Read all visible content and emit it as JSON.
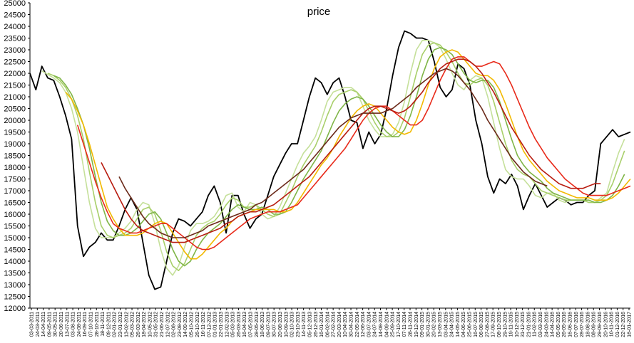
{
  "chart_data": {
    "type": "line",
    "title": "price",
    "xlabel": "",
    "ylabel": "",
    "ylim": [
      12000,
      25000
    ],
    "y_ticks": [
      12000,
      12500,
      13000,
      13500,
      14000,
      14500,
      15000,
      15500,
      16000,
      16500,
      17000,
      17500,
      18000,
      18500,
      19000,
      19500,
      20000,
      20500,
      21000,
      21500,
      22000,
      22500,
      23000,
      23500,
      24000,
      24500,
      25000
    ],
    "x_tick_labels": [
      "03-03-2011",
      "24-03-2011",
      "14-04-2011",
      "09-05-2011",
      "30-05-2011",
      "20-06-2011",
      "13-07-2011",
      "03-08-2011",
      "24-08-2011",
      "16-09-2011",
      "07-10-2011",
      "28-10-2011",
      "18-11-2011",
      "09-12-2011",
      "02-01-2012",
      "23-01-2012",
      "13-02-2012",
      "05-03-2012",
      "26-03-2012",
      "18-04-2012",
      "10-05-2012",
      "31-05-2012",
      "21-06-2012",
      "12-07-2012",
      "02-08-2012",
      "23-08-2012",
      "14-09-2012",
      "05-10-2012",
      "26-10-2012",
      "16-11-2012",
      "07-12-2012",
      "01-01-2013",
      "22-01-2013",
      "12-02-2013",
      "05-03-2013",
      "26-03-2013",
      "16-04-2013",
      "07-05-2013",
      "28-05-2013",
      "18-06-2013",
      "09-07-2013",
      "30-07-2013",
      "20-08-2013",
      "10-09-2013",
      "02-10-2013",
      "23-10-2013",
      "14-11-2013",
      "05-12-2013",
      "26-12-2013",
      "16-01-2014",
      "06-02-2014",
      "27-02-2014",
      "20-03-2014",
      "10-04-2014",
      "30-04-2014",
      "22-05-2014",
      "12-06-2014",
      "03-07-2014",
      "24-07-2014",
      "14-08-2014",
      "04-09-2014",
      "25-09-2014",
      "17-10-2014",
      "07-11-2014",
      "28-11-2014",
      "19-12-2014",
      "09-01-2015",
      "30-01-2015",
      "20-02-2015",
      "13-03-2015",
      "03-04-2015",
      "24-04-2015",
      "14-05-2015",
      "04-06-2015",
      "25-06-2015",
      "16-07-2015",
      "06-08-2015",
      "27-08-2015",
      "17-09-2015",
      "08-10-2015",
      "29-10-2015",
      "19-11-2015",
      "10-12-2015",
      "31-12-2015",
      "21-01-2016",
      "11-02-2016",
      "03-03-2016",
      "24-03-2016",
      "14-04-2016",
      "05-05-2016",
      "26-05-2016",
      "16-06-2016",
      "07-07-2016",
      "28-07-2016",
      "18-08-2016",
      "08-09-2016",
      "29-09-2016",
      "20-10-2016",
      "10-11-2016",
      "01-12-2016",
      "22-12-2016",
      "16-01-2017"
    ],
    "x_range": [
      0,
      101
    ],
    "grid": false,
    "legend": "none",
    "series": [
      {
        "color": "#000000",
        "role": "price",
        "x": [
          0,
          1,
          2,
          3,
          4,
          5,
          6,
          7,
          8,
          9,
          10,
          11,
          12,
          13,
          14,
          15,
          16,
          17,
          18,
          19,
          20,
          21,
          22,
          23,
          24,
          25,
          26,
          27,
          28,
          29,
          30,
          31,
          32,
          33,
          34,
          35,
          36,
          37,
          38,
          39,
          40,
          41,
          42,
          43,
          44,
          45,
          46,
          47,
          48,
          49,
          50,
          51,
          52,
          53,
          54,
          55,
          56,
          57,
          58,
          59,
          60,
          61,
          62,
          63,
          64,
          65,
          66,
          67,
          68,
          69,
          70,
          71,
          72,
          73,
          74,
          75,
          76,
          77,
          78,
          79,
          80,
          81,
          82,
          83,
          84,
          85,
          86,
          87,
          88,
          89,
          90,
          91,
          92,
          93,
          94,
          95,
          96,
          97,
          98,
          99,
          100,
          101
        ],
        "values": [
          22000,
          21300,
          22300,
          21800,
          21700,
          21000,
          20200,
          19200,
          15500,
          14200,
          14600,
          14800,
          15200,
          14900,
          14900,
          15500,
          16200,
          16700,
          16200,
          14800,
          13400,
          12800,
          12900,
          14000,
          15200,
          15800,
          15700,
          15500,
          15800,
          16100,
          16800,
          17200,
          16500,
          15200,
          16800,
          16800,
          16000,
          15400,
          15800,
          16000,
          16800,
          17600,
          18100,
          18600,
          19000,
          19000,
          20000,
          21000,
          21800,
          21600,
          21100,
          21600,
          21800,
          21000,
          20000,
          19900,
          18800,
          19500,
          19000,
          19400,
          20500,
          21900,
          23100,
          23800,
          23700,
          23500,
          23500,
          23400,
          22500,
          21400,
          21000,
          21300,
          22400,
          22200,
          21500,
          20000,
          19000,
          17600,
          16900,
          17500,
          17300,
          17700,
          17200,
          16200,
          16800,
          17300,
          16800,
          16300,
          16500,
          16700,
          16600,
          16400,
          16500,
          16500,
          16800,
          17000,
          19000,
          19300,
          19600,
          19300,
          19400,
          19500
        ]
      },
      {
        "color": "#c5e09a",
        "role": "moving-average",
        "start": 2,
        "values": [
          22100,
          21950,
          21800,
          21600,
          21200,
          20500,
          19500,
          18000,
          16500,
          15400,
          15000,
          15000,
          15000,
          15200,
          15400,
          15700,
          16200,
          16500,
          16400,
          15600,
          14500,
          13700,
          13400,
          13800,
          14600,
          15300,
          15600,
          15600,
          15700,
          15900,
          16300,
          16800,
          16900,
          16300,
          16100,
          16500,
          16400,
          16000,
          15800,
          15900,
          16300,
          16900,
          17500,
          18100,
          18600,
          18900,
          19300,
          20000,
          20800,
          21200,
          21300,
          21400,
          21400,
          21200,
          20600,
          20000,
          19600,
          19300,
          19300,
          19400,
          19900,
          20800,
          22000,
          23000,
          23400,
          23400,
          23300,
          23100,
          22600,
          22000,
          21500,
          21300,
          21700,
          21900,
          21800,
          21000,
          19900,
          18800,
          17900,
          17600,
          17500,
          17500,
          17200,
          16800,
          16700,
          16900,
          16900,
          16600,
          16500,
          16600,
          16600,
          16600,
          16500,
          16500,
          16700,
          16900,
          17800,
          18600,
          19200
        ]
      },
      {
        "color": "#a8cf6a",
        "role": "moving-average",
        "start": 3,
        "values": [
          22000,
          21900,
          21700,
          21400,
          20900,
          20200,
          19200,
          17800,
          16500,
          15500,
          15100,
          15000,
          15100,
          15200,
          15400,
          15800,
          16200,
          16300,
          16000,
          15300,
          14400,
          13800,
          13600,
          13900,
          14500,
          15100,
          15400,
          15600,
          15700,
          16000,
          16400,
          16700,
          16600,
          16300,
          16300,
          16400,
          16200,
          16000,
          15900,
          16000,
          16500,
          17000,
          17600,
          18100,
          18500,
          18900,
          19500,
          20200,
          20800,
          21100,
          21200,
          21300,
          21200,
          20900,
          20400,
          19900,
          19500,
          19300,
          19300,
          19500,
          20100,
          21000,
          22000,
          22800,
          23200,
          23300,
          23200,
          22900,
          22500,
          22000,
          21600,
          21500,
          21700,
          21800,
          21500,
          20800,
          19900,
          19000,
          18300,
          17900,
          17700,
          17600,
          17300,
          17000,
          16900,
          16800,
          16700,
          16600,
          16600,
          16600,
          16600,
          16500,
          16500,
          16600,
          16800,
          17300,
          18000,
          18700
        ]
      },
      {
        "color": "#7fb547",
        "role": "moving-average",
        "start": 4,
        "values": [
          21900,
          21800,
          21500,
          21100,
          20500,
          19800,
          18800,
          17600,
          16500,
          15700,
          15300,
          15100,
          15100,
          15200,
          15400,
          15700,
          16000,
          16100,
          15800,
          15200,
          14500,
          14000,
          13800,
          14000,
          14500,
          14900,
          15200,
          15400,
          15600,
          15900,
          16200,
          16400,
          16300,
          16200,
          16200,
          16300,
          16200,
          16000,
          16000,
          16100,
          16500,
          17000,
          17500,
          17900,
          18300,
          18700,
          19300,
          19900,
          20400,
          20700,
          20900,
          21000,
          20900,
          20600,
          20200,
          19800,
          19500,
          19300,
          19300,
          19600,
          20200,
          21000,
          21900,
          22600,
          23000,
          23100,
          23000,
          22800,
          22400,
          22000,
          21700,
          21600,
          21700,
          21700,
          21400,
          20800,
          20000,
          19200,
          18500,
          18100,
          17800,
          17600,
          17400,
          17100,
          16900,
          16800,
          16700,
          16600,
          16600,
          16600,
          16600,
          16500,
          16500,
          16600,
          16800,
          17200,
          17700
        ]
      },
      {
        "color": "#f2b900",
        "role": "moving-average",
        "start": 6,
        "values": [
          21200,
          20900,
          20400,
          19800,
          19000,
          18100,
          17200,
          16300,
          15800,
          15400,
          15100,
          15100,
          15100,
          15200,
          15400,
          15600,
          15700,
          15600,
          15200,
          14800,
          14400,
          14100,
          14100,
          14300,
          14600,
          14900,
          15200,
          15400,
          15700,
          15900,
          16000,
          16100,
          16200,
          16200,
          16200,
          16200,
          16100,
          16100,
          16200,
          16500,
          16900,
          17300,
          17700,
          18100,
          18400,
          18800,
          19300,
          19700,
          20100,
          20400,
          20600,
          20700,
          20600,
          20300,
          20000,
          19700,
          19500,
          19400,
          19500,
          20000,
          20700,
          21500,
          22200,
          22700,
          22900,
          23000,
          22900,
          22600,
          22300,
          22000,
          21900,
          21900,
          21700,
          21300,
          20700,
          20000,
          19300,
          18700,
          18300,
          18000,
          17700,
          17400,
          17200,
          17000,
          16900,
          16800,
          16700,
          16700,
          16700,
          16600,
          16600,
          16600,
          16700,
          16900,
          17200,
          17500
        ]
      },
      {
        "color": "#e82a1a",
        "role": "moving-average",
        "start": 8,
        "values": [
          19800,
          19000,
          18200,
          17400,
          16700,
          16100,
          15600,
          15400,
          15300,
          15200,
          15200,
          15300,
          15400,
          15500,
          15600,
          15600,
          15400,
          15200,
          15000,
          14800,
          14600,
          14500,
          14500,
          14600,
          14800,
          15000,
          15200,
          15400,
          15600,
          15800,
          15900,
          16000,
          16100,
          16100,
          16100,
          16200,
          16300,
          16400,
          16700,
          17000,
          17300,
          17600,
          17900,
          18200,
          18500,
          18800,
          19200,
          19600,
          20000,
          20300,
          20500,
          20600,
          20600,
          20400,
          20200,
          20000,
          19800,
          19800,
          20000,
          20500,
          21100,
          21700,
          22200,
          22600,
          22700,
          22700,
          22500,
          22300,
          22300,
          22400,
          22500,
          22400,
          22000,
          21500,
          20900,
          20300,
          19700,
          19200,
          18800,
          18400,
          18100,
          17800,
          17500,
          17300,
          17100,
          16900,
          16800,
          16800,
          16800,
          16800,
          16900,
          17000,
          17100,
          17200
        ]
      },
      {
        "color": "#b81c10",
        "role": "moving-average",
        "start": 12,
        "values": [
          18200,
          17700,
          17200,
          16700,
          16200,
          15800,
          15500,
          15300,
          15200,
          15100,
          15000,
          14900,
          14800,
          14800,
          14800,
          14900,
          15000,
          15100,
          15200,
          15300,
          15400,
          15600,
          15700,
          15900,
          16000,
          16100,
          16100,
          16200,
          16300,
          16400,
          16600,
          16800,
          17000,
          17200,
          17400,
          17600,
          17900,
          18200,
          18500,
          18800,
          19100,
          19400,
          19700,
          20000,
          20300,
          20500,
          20600,
          20600,
          20500,
          20400,
          20300,
          20400,
          20600,
          20900,
          21200,
          21600,
          21900,
          22200,
          22400,
          22500,
          22600,
          22600,
          22500,
          22300,
          22000,
          21600,
          21200,
          20700,
          20200,
          19700,
          19300,
          18900,
          18500,
          18200,
          17900,
          17700,
          17500,
          17300,
          17200,
          17100,
          17100,
          17100,
          17200,
          17300,
          17300
        ]
      },
      {
        "color": "#6b2a1a",
        "role": "moving-average",
        "start": 15,
        "values": [
          17600,
          17100,
          16700,
          16300,
          15900,
          15600,
          15400,
          15200,
          15100,
          15000,
          15000,
          15000,
          15100,
          15200,
          15300,
          15500,
          15600,
          15700,
          15800,
          15900,
          16000,
          16100,
          16200,
          16400,
          16500,
          16700,
          16900,
          17100,
          17300,
          17500,
          17700,
          17900,
          18200,
          18500,
          18800,
          19100,
          19400,
          19700,
          19900,
          20100,
          20200,
          20300,
          20300,
          20300,
          20300,
          20400,
          20500,
          20700,
          20900,
          21100,
          21400,
          21600,
          21800,
          22000,
          22100,
          22200,
          22100,
          21900,
          21600,
          21300,
          20900,
          20500,
          20000,
          19600,
          19200,
          18800,
          18400,
          18100,
          17800,
          17600,
          17400,
          17300,
          17200
        ]
      }
    ]
  }
}
